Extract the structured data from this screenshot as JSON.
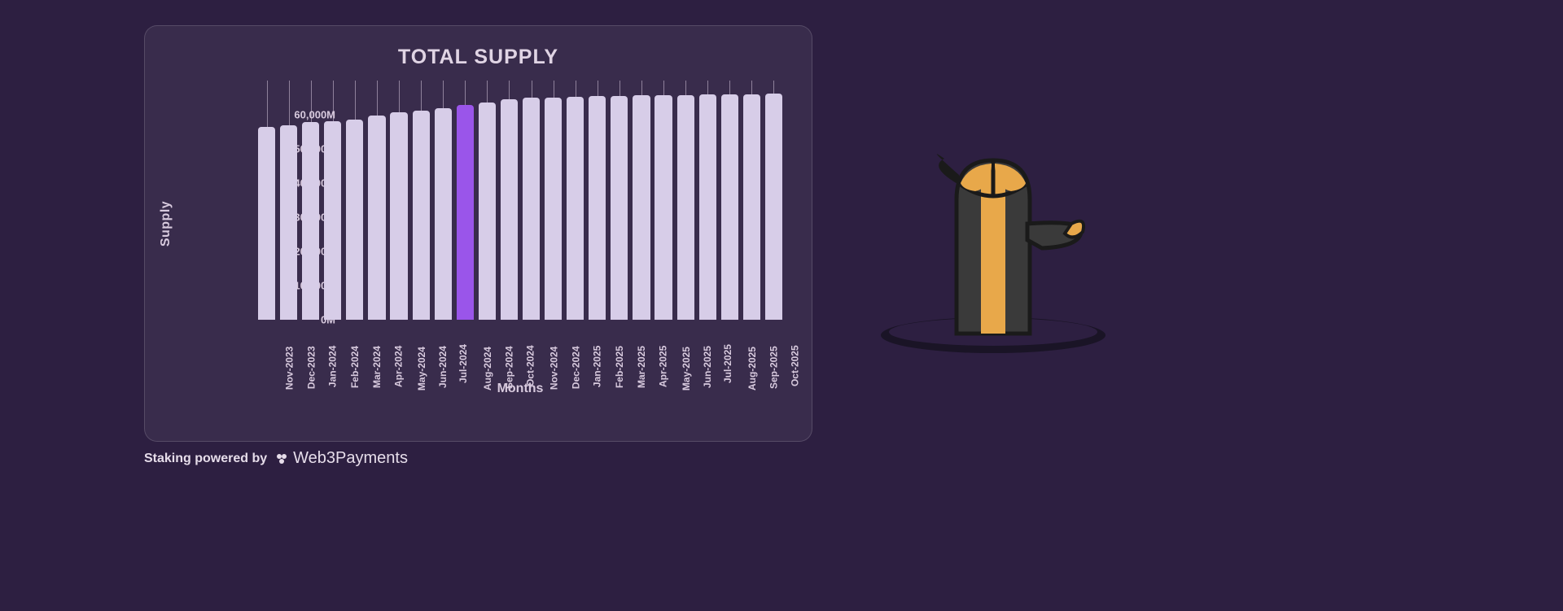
{
  "chart": {
    "type": "bar",
    "title": "TOTAL SUPPLY",
    "title_fontsize": 25,
    "title_color": "#e0d4e4",
    "panel_bg": "rgba(255,255,255,0.06)",
    "panel_border": "rgba(255,255,255,0.15)",
    "page_bg": "#2d1f41",
    "y_axis_title": "Supply",
    "x_axis_title": "Months",
    "axis_title_fontsize": 16,
    "tick_label_color": "#d8cade",
    "tick_label_fontsize_x": 12,
    "tick_label_fontsize_y": 13,
    "bar_color_default": "#d7cde8",
    "bar_color_highlight": "#9a55ea",
    "grid_tick_color": "rgba(215,200,220,0.55)",
    "bar_width_ratio": 0.78,
    "bar_border_radius": 4,
    "ylim": [
      0,
      70000
    ],
    "y_ticks": [
      {
        "v": 0,
        "label": "0M"
      },
      {
        "v": 10000,
        "label": "10,000M"
      },
      {
        "v": 20000,
        "label": "20,000M"
      },
      {
        "v": 30000,
        "label": "30,000M"
      },
      {
        "v": 40000,
        "label": "40,000M"
      },
      {
        "v": 50000,
        "label": "50,000M"
      },
      {
        "v": 60000,
        "label": "60,000M"
      }
    ],
    "categories": [
      "Nov-2023",
      "Dec-2023",
      "Jan-2024",
      "Feb-2024",
      "Mar-2024",
      "Apr-2024",
      "May-2024",
      "Jun-2024",
      "Jul-2024",
      "Aug-2024",
      "Sep-2024",
      "Oct-2024",
      "Nov-2024",
      "Dec-2024",
      "Jan-2025",
      "Feb-2025",
      "Mar-2025",
      "Apr-2025",
      "May-2025",
      "Jun-2025",
      "Jul-2025",
      "Aug-2025",
      "Sep-2025",
      "Oct-2025"
    ],
    "values": [
      56500,
      57000,
      57800,
      58200,
      58500,
      59800,
      60800,
      61200,
      61800,
      62800,
      63500,
      64600,
      64900,
      65100,
      65200,
      65400,
      65500,
      65600,
      65700,
      65800,
      65900,
      66000,
      66050,
      66100
    ],
    "highlight_index": 9
  },
  "footer": {
    "label": "Staking powered by",
    "brand": "Web3Payments",
    "brand_icon_color": "#e6ddea",
    "text_color": "#e6ddea"
  },
  "character": {
    "body_color": "#3a3a3a",
    "accent_color": "#e8a84a",
    "outline_color": "#1a1a1a",
    "hole_color": "#1a1426"
  }
}
